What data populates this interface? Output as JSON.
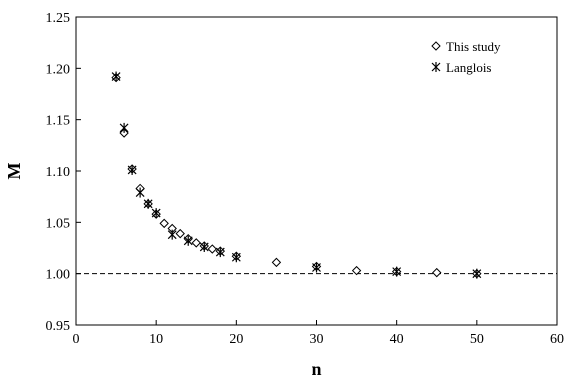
{
  "chart_data": {
    "type": "scatter",
    "title": "",
    "xlabel": "n",
    "ylabel": "M",
    "xlim": [
      0,
      60
    ],
    "ylim": [
      0.95,
      1.25
    ],
    "xticks": [
      0,
      10,
      20,
      30,
      40,
      50,
      60
    ],
    "yticks": [
      0.95,
      1.0,
      1.05,
      1.1,
      1.15,
      1.2,
      1.25
    ],
    "xtick_labels": [
      "0",
      "10",
      "20",
      "30",
      "40",
      "50",
      "60"
    ],
    "ytick_labels": [
      "0.95",
      "1.00",
      "1.05",
      "1.10",
      "1.15",
      "1.20",
      "1.25"
    ],
    "grid": false,
    "legend_position": "top-right",
    "reference_line": {
      "y": 1.0,
      "style": "dashed"
    },
    "series": [
      {
        "name": "This study",
        "marker": "diamond",
        "points": [
          [
            5,
            1.191
          ],
          [
            6,
            1.137
          ],
          [
            7,
            1.102
          ],
          [
            8,
            1.083
          ],
          [
            9,
            1.068
          ],
          [
            10,
            1.058
          ],
          [
            11,
            1.049
          ],
          [
            12,
            1.044
          ],
          [
            13,
            1.039
          ],
          [
            14,
            1.034
          ],
          [
            15,
            1.03
          ],
          [
            16,
            1.027
          ],
          [
            17,
            1.024
          ],
          [
            18,
            1.022
          ],
          [
            20,
            1.017
          ],
          [
            25,
            1.011
          ],
          [
            30,
            1.007
          ],
          [
            35,
            1.003
          ],
          [
            40,
            1.002
          ],
          [
            45,
            1.001
          ],
          [
            50,
            1.0
          ]
        ]
      },
      {
        "name": "Langlois",
        "marker": "asterisk",
        "points": [
          [
            5,
            1.192
          ],
          [
            6,
            1.142
          ],
          [
            7,
            1.101
          ],
          [
            8,
            1.079
          ],
          [
            9,
            1.068
          ],
          [
            10,
            1.059
          ],
          [
            12,
            1.038
          ],
          [
            14,
            1.032
          ],
          [
            16,
            1.026
          ],
          [
            18,
            1.021
          ],
          [
            20,
            1.016
          ],
          [
            30,
            1.006
          ],
          [
            40,
            1.002
          ],
          [
            50,
            1.0
          ]
        ]
      }
    ]
  }
}
